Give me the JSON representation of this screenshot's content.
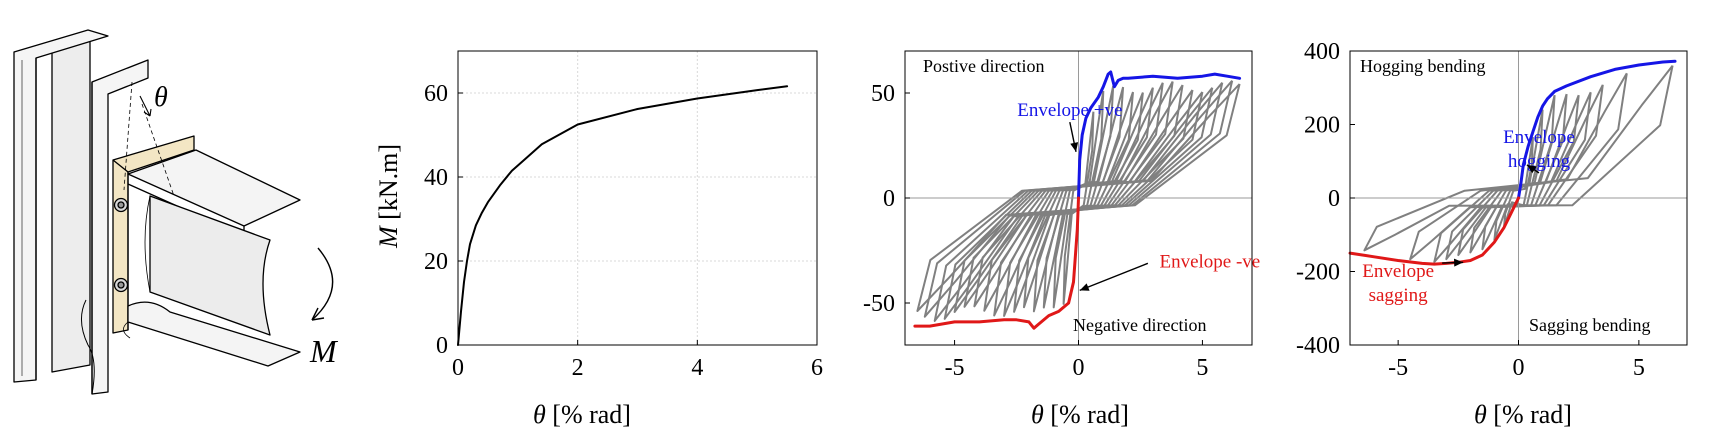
{
  "colors": {
    "cycle": "#808080",
    "positive": "#1515e6",
    "negative": "#e01818",
    "axis": "#000000",
    "grid": "#d9d9d9",
    "plate": "#f3e6c4",
    "steel": "#f2f2f2"
  },
  "schematic": {
    "theta_symbol": "θ",
    "moment_symbol": "M"
  },
  "chart_data": [
    {
      "type": "line",
      "xlabel_symbol": "θ",
      "xlabel_unit": " [% rad]",
      "ylabel_symbol": "M",
      "ylabel_unit": " [kN.m]",
      "xlim": [
        0,
        6
      ],
      "ylim": [
        0,
        70
      ],
      "xticks": [
        0,
        2,
        4,
        6
      ],
      "yticks": [
        0,
        20,
        40,
        60
      ],
      "grid": true,
      "series": [
        {
          "x": [
            0,
            0.05,
            0.1,
            0.15,
            0.2,
            0.3,
            0.4,
            0.5,
            0.7,
            0.9,
            1.1,
            1.4,
            2.0,
            3.0,
            4.0,
            5.0,
            5.5
          ],
          "y": [
            0,
            8,
            15,
            20,
            24,
            28.5,
            31.5,
            34,
            38,
            41.5,
            44,
            47.8,
            52.5,
            56.2,
            58.7,
            60.7,
            61.6
          ]
        }
      ]
    },
    {
      "type": "line",
      "xlabel_symbol": "θ",
      "xlabel_unit": " [% rad]",
      "xlim": [
        -7,
        7
      ],
      "ylim": [
        -70,
        70
      ],
      "xticks": [
        -5,
        0,
        5
      ],
      "yticks": [
        -50,
        0,
        50
      ],
      "grid": false,
      "quadrant_labels": [
        "Postive direction",
        "Negative direction"
      ],
      "annotations": [
        {
          "text": "Envelope +ve",
          "x": -0.35,
          "y": 39,
          "arrow_to": [
            -0.1,
            22
          ]
        },
        {
          "text": "Envelope -ve",
          "x": 5.3,
          "y": -33,
          "arrow_to": [
            0.05,
            -44
          ]
        }
      ],
      "series": [
        {
          "name": "Envelope +ve",
          "color": "positive",
          "x": [
            0,
            0.05,
            0.15,
            0.3,
            0.5,
            0.8,
            1.0,
            1.2,
            1.3,
            1.45,
            1.6,
            1.8,
            2.0,
            3.0,
            4.0,
            5.0,
            5.5,
            6.0,
            6.5
          ],
          "y": [
            0,
            18,
            30,
            38,
            43,
            48,
            53,
            59,
            60,
            53,
            56,
            57,
            57,
            58,
            57,
            58,
            59,
            58,
            57
          ]
        },
        {
          "name": "Envelope -ve",
          "color": "negative",
          "x": [
            0,
            -0.05,
            -0.2,
            -0.4,
            -0.8,
            -1.2,
            -1.6,
            -1.8,
            -2.0,
            -2.5,
            -3.0,
            -4.0,
            -5.0,
            -6.0,
            -6.6
          ],
          "y": [
            0,
            -15,
            -40,
            -50,
            -54,
            -56,
            -60,
            -62,
            -59,
            -58,
            -58,
            -59,
            -59,
            -61,
            -61
          ]
        }
      ]
    },
    {
      "type": "line",
      "xlabel_symbol": "θ",
      "xlabel_unit": " [% rad]",
      "xlim": [
        -7,
        7
      ],
      "ylim": [
        -400,
        400
      ],
      "xticks": [
        -5,
        0,
        5
      ],
      "yticks": [
        -400,
        -200,
        0,
        200,
        400
      ],
      "grid": false,
      "quadrant_labels": [
        "Hogging bending",
        "Sagging bending"
      ],
      "annotations": [
        {
          "text": "Envelope",
          "text2": "hogging",
          "x": 0.85,
          "y": 150,
          "arrow_to": [
            0.35,
            90
          ]
        },
        {
          "text": "Envelope",
          "text2": "sagging",
          "x": -5.0,
          "y": -215,
          "arrow_to": [
            -2.3,
            -175
          ]
        }
      ],
      "series": [
        {
          "name": "Envelope hogging",
          "color": "positive",
          "x": [
            0,
            0.1,
            0.2,
            0.4,
            0.6,
            0.8,
            1.0,
            1.2,
            1.5,
            2.0,
            3.0,
            4.0,
            5.0,
            6.0,
            6.5
          ],
          "y": [
            0,
            40,
            90,
            140,
            180,
            220,
            250,
            270,
            290,
            305,
            330,
            350,
            362,
            370,
            372
          ]
        },
        {
          "name": "Envelope sagging",
          "color": "negative",
          "x": [
            0,
            -0.3,
            -0.6,
            -1.0,
            -1.5,
            -2.0,
            -2.5,
            -3.0,
            -3.5,
            -4.0,
            -5.0,
            -6.0,
            -7.0
          ],
          "y": [
            0,
            -40,
            -80,
            -120,
            -155,
            -170,
            -175,
            -178,
            -180,
            -178,
            -170,
            -160,
            -150
          ]
        }
      ]
    }
  ]
}
